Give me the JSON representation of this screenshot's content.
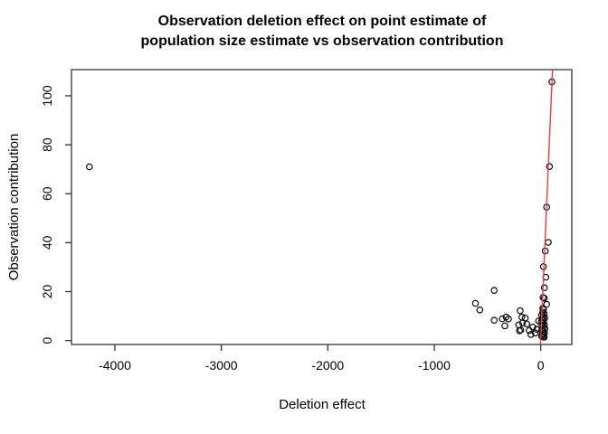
{
  "figure": {
    "title_line1": "Observation deletion effect on point estimate of",
    "title_line2": "population size estimate vs observation contribution"
  },
  "chart_data": {
    "type": "scatter",
    "title": "Observation deletion effect on point estimate of population size estimate vs observation contribution",
    "xlabel": "Deletion effect",
    "ylabel": "Observation contribution",
    "x_ticks": [
      -4000,
      -3000,
      -2000,
      -1000,
      0
    ],
    "y_ticks": [
      0,
      20,
      40,
      60,
      80,
      100
    ],
    "xlim": [
      -4408,
      292
    ],
    "ylim": [
      -1.6,
      110.7
    ],
    "grid": false,
    "legend": "none",
    "marker": {
      "shape": "open-circle",
      "color": "#000000",
      "radius": 3.2,
      "stroke_width": 1.15
    },
    "reference_line": {
      "name": "identity-line",
      "intercept": 0,
      "slope": 1,
      "color": "#ef3b3b",
      "width": 1.4
    },
    "points": [
      [
        -4240,
        71.0
      ],
      [
        -613,
        15.2
      ],
      [
        -572,
        12.5
      ],
      [
        -437,
        20.5
      ],
      [
        -437,
        8.3
      ],
      [
        -362,
        8.9
      ],
      [
        -337,
        6.0
      ],
      [
        -326,
        9.6
      ],
      [
        -303,
        8.8
      ],
      [
        -207,
        6.4
      ],
      [
        -199,
        4.0
      ],
      [
        -193,
        12.2
      ],
      [
        -187,
        4.3
      ],
      [
        -178,
        9.6
      ],
      [
        -170,
        7.2
      ],
      [
        -146,
        9.2
      ],
      [
        -131,
        6.8
      ],
      [
        -108,
        4.1
      ],
      [
        -93,
        2.5
      ],
      [
        -74,
        5.5
      ],
      [
        -51,
        3.1
      ],
      [
        105,
        105.7
      ],
      [
        82,
        71.1
      ],
      [
        56,
        54.5
      ],
      [
        71,
        40.1
      ],
      [
        42,
        36.6
      ],
      [
        25,
        30.2
      ],
      [
        48,
        25.9
      ],
      [
        34,
        21.6
      ],
      [
        34,
        17.3
      ],
      [
        22,
        17.6
      ],
      [
        56,
        14.8
      ],
      [
        20,
        13.2
      ],
      [
        25,
        12.7
      ],
      [
        18,
        11.5
      ],
      [
        32,
        11.0
      ],
      [
        8,
        10.4
      ],
      [
        24,
        9.8
      ],
      [
        38,
        9.3
      ],
      [
        14,
        8.7
      ],
      [
        28,
        8.2
      ],
      [
        5,
        7.6
      ],
      [
        20,
        7.1
      ],
      [
        34,
        6.5
      ],
      [
        12,
        6.0
      ],
      [
        26,
        5.4
      ],
      [
        40,
        4.9
      ],
      [
        10,
        4.3
      ],
      [
        24,
        3.8
      ],
      [
        36,
        3.2
      ],
      [
        16,
        2.7
      ],
      [
        28,
        2.2
      ],
      [
        8,
        1.8
      ],
      [
        22,
        1.5
      ],
      [
        32,
        1.4
      ],
      [
        -37,
        4.6
      ],
      [
        -20,
        8.0
      ]
    ]
  }
}
